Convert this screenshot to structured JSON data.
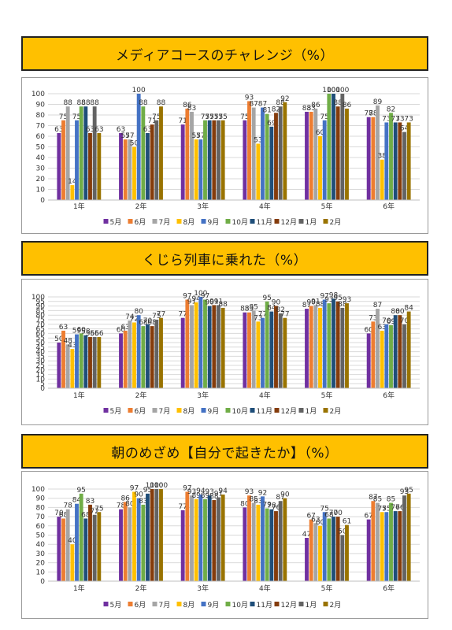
{
  "titles": [
    "メディアコースのチャレンジ（%）",
    "くじら列車に乗れた（%）",
    "朝のめざめ【自分で起きたか】（%）"
  ],
  "chart_data": [
    {
      "type": "bar",
      "title": "メディアコースのチャレンジ（%）",
      "categories": [
        "1年",
        "2年",
        "3年",
        "4年",
        "5年",
        "6年"
      ],
      "ylim": [
        0,
        100
      ],
      "yticks": [
        0,
        10,
        20,
        30,
        40,
        50,
        60,
        70,
        80,
        90,
        100
      ],
      "legend_position": "bottom",
      "series": [
        {
          "name": "5月",
          "color": "#7030a0",
          "values": [
            63,
            63,
            71,
            75,
            83,
            78
          ]
        },
        {
          "name": "6月",
          "color": "#ed7d31",
          "values": [
            75,
            57,
            86,
            93,
            83,
            78
          ]
        },
        {
          "name": "7月",
          "color": "#a5a5a5",
          "values": [
            88,
            57,
            83,
            87,
            86,
            89
          ]
        },
        {
          "name": "8月",
          "color": "#ffc000",
          "values": [
            14,
            50,
            57,
            53,
            60,
            38
          ]
        },
        {
          "name": "9月",
          "color": "#4472c4",
          "values": [
            75,
            100,
            57,
            87,
            75,
            73
          ]
        },
        {
          "name": "10月",
          "color": "#70ad47",
          "values": [
            88,
            88,
            75,
            81,
            100,
            82
          ]
        },
        {
          "name": "11月",
          "color": "#1f4e79",
          "values": [
            88,
            63,
            75,
            69,
            100,
            73
          ]
        },
        {
          "name": "12月",
          "color": "#843c0c",
          "values": [
            63,
            71,
            75,
            82,
            88,
            73
          ]
        },
        {
          "name": "1月",
          "color": "#636363",
          "values": [
            88,
            75,
            75,
            88,
            100,
            64
          ]
        },
        {
          "name": "2月",
          "color": "#997300",
          "values": [
            63,
            88,
            75,
            92,
            86,
            73
          ]
        }
      ]
    },
    {
      "type": "bar",
      "title": "くじら列車に乗れた（%）",
      "categories": [
        "1年",
        "2年",
        "3年",
        "4年",
        "5年",
        "6年"
      ],
      "ylim": [
        0,
        100
      ],
      "yticks": [
        0,
        5,
        10,
        15,
        20,
        25,
        30,
        35,
        40,
        45,
        50,
        55,
        60,
        65,
        70,
        75,
        80,
        85,
        90,
        95,
        100
      ],
      "legend_position": "bottom",
      "series": [
        {
          "name": "5月",
          "color": "#7030a0",
          "values": [
            50,
            60,
            77,
            83,
            87,
            60
          ]
        },
        {
          "name": "6月",
          "color": "#ed7d31",
          "values": [
            63,
            63,
            97,
            83,
            90,
            73
          ]
        },
        {
          "name": "7月",
          "color": "#a5a5a5",
          "values": [
            48,
            74,
            91,
            85,
            91,
            87
          ]
        },
        {
          "name": "8月",
          "color": "#ffc000",
          "values": [
            43,
            72,
            94,
            73,
            88,
            63
          ]
        },
        {
          "name": "9月",
          "color": "#4472c4",
          "values": [
            59,
            80,
            100,
            77,
            97,
            70
          ]
        },
        {
          "name": "10月",
          "color": "#70ad47",
          "values": [
            60,
            68,
            97,
            95,
            93,
            69
          ]
        },
        {
          "name": "11月",
          "color": "#1f4e79",
          "values": [
            58,
            70,
            90,
            84,
            98,
            80
          ]
        },
        {
          "name": "12月",
          "color": "#843c0c",
          "values": [
            56,
            68,
            91,
            90,
            95,
            80
          ]
        },
        {
          "name": "1月",
          "color": "#636363",
          "values": [
            56,
            75,
            91,
            82,
            88,
            70
          ]
        },
        {
          "name": "2月",
          "color": "#997300",
          "values": [
            56,
            77,
            88,
            77,
            93,
            84
          ]
        }
      ]
    },
    {
      "type": "bar",
      "title": "朝のめざめ【自分で起きたか】（%）",
      "categories": [
        "1年",
        "2年",
        "3年",
        "4年",
        "5年",
        "6年"
      ],
      "ylim": [
        0,
        100
      ],
      "yticks": [
        0,
        10,
        20,
        30,
        40,
        50,
        60,
        70,
        80,
        90,
        100
      ],
      "legend_position": "bottom",
      "series": [
        {
          "name": "5月",
          "color": "#7030a0",
          "values": [
            70,
            78,
            77,
            80,
            47,
            67
          ]
        },
        {
          "name": "6月",
          "color": "#ed7d31",
          "values": [
            68,
            86,
            97,
            93,
            67,
            87
          ]
        },
        {
          "name": "7月",
          "color": "#a5a5a5",
          "values": [
            78,
            80,
            93,
            85,
            63,
            85
          ]
        },
        {
          "name": "8月",
          "color": "#ffc000",
          "values": [
            40,
            97,
            89,
            83,
            60,
            75
          ]
        },
        {
          "name": "9月",
          "color": "#4472c4",
          "values": [
            84,
            90,
            94,
            92,
            75,
            75
          ]
        },
        {
          "name": "10月",
          "color": "#70ad47",
          "values": [
            95,
            83,
            89,
            79,
            68,
            85
          ]
        },
        {
          "name": "11月",
          "color": "#1f4e79",
          "values": [
            68,
            95,
            93,
            78,
            70,
            76
          ]
        },
        {
          "name": "12月",
          "color": "#843c0c",
          "values": [
            83,
            100,
            88,
            76,
            70,
            76
          ]
        },
        {
          "name": "1月",
          "color": "#636363",
          "values": [
            72,
            100,
            91,
            87,
            50,
            93
          ]
        },
        {
          "name": "2月",
          "color": "#997300",
          "values": [
            75,
            100,
            94,
            90,
            61,
            95
          ]
        }
      ]
    }
  ]
}
